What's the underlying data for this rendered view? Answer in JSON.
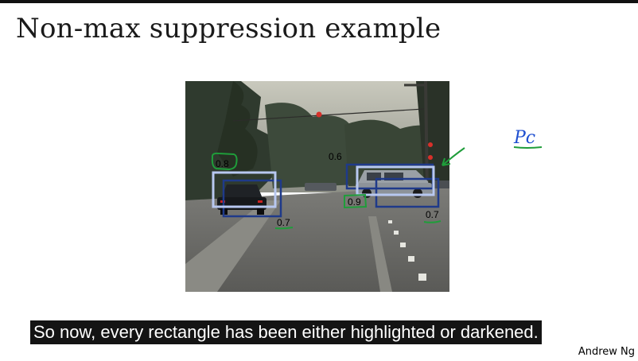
{
  "slide": {
    "title": "Non-max suppression example",
    "author": "Andrew Ng"
  },
  "figure": {
    "scene": "street-scene-photo",
    "detections": [
      {
        "label": "0.8",
        "status": "highlighted",
        "object": "car-left"
      },
      {
        "label": "0.7",
        "status": "darkened",
        "object": "car-left"
      },
      {
        "label": "0.6",
        "status": "darkened",
        "object": "car-right"
      },
      {
        "label": "0.9",
        "status": "highlighted",
        "object": "car-right"
      },
      {
        "label": "0.7",
        "status": "darkened",
        "object": "car-right"
      }
    ],
    "annotation": "Pc"
  },
  "subtitle": {
    "text": "So now, every rectangle has been either highlighted or darkened."
  },
  "colors": {
    "highlight_box": "#b8c8f0",
    "dark_box": "#1f3a8a",
    "ink_green": "#1f9d3a",
    "ink_blue": "#1f4fd0",
    "caption_bg": "#141414"
  }
}
